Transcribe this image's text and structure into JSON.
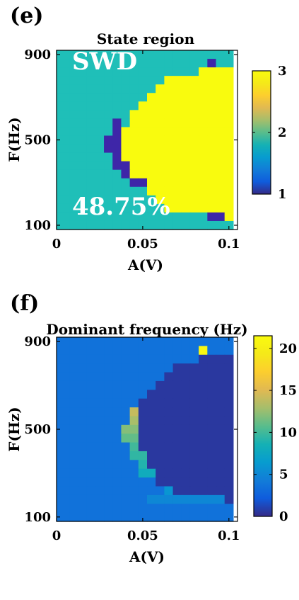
{
  "chart_data": [
    {
      "type": "heatmap",
      "panel": "(e)",
      "title": "State region",
      "xlabel": "A(V)",
      "ylabel": "F(Hz)",
      "xlim": [
        0,
        0.105
      ],
      "ylim": [
        80,
        920
      ],
      "xticks": [
        0,
        0.05,
        0.1
      ],
      "xtick_labels": [
        "0",
        "0.05",
        "0.1"
      ],
      "yticks": [
        100,
        500,
        900
      ],
      "ytick_labels": [
        "100",
        "500",
        "900"
      ],
      "grid": false,
      "colormap": "parula",
      "colorbar": {
        "min": 1,
        "max": 3,
        "ticks": [
          1,
          2,
          3
        ],
        "tick_labels": [
          "1",
          "2",
          "3"
        ]
      },
      "annotations": [
        {
          "text": "SWD",
          "x": 0.009,
          "y": 830
        },
        {
          "text": "48.75%",
          "x": 0.009,
          "y": 150
        }
      ],
      "grid_spec": {
        "cols": 21,
        "rows": 21,
        "x0": 0,
        "dx": 0.005,
        "y0": 100,
        "dy": 40
      },
      "values_rows_top_to_bottom": [
        "222222222222222222222",
        "222222222222222222122",
        "222222222222222223333",
        "222222222222233333333",
        "222222222222333333333",
        "222222222223333333333",
        "222222222233333333333",
        "222222222333333333333",
        "222222212333333333333",
        "222222213333333333333",
        "222222113333333333333",
        "222222113333333333333",
        "222222213333333333333",
        "222222211333333333333",
        "222222221333333333333",
        "222222222113333333333",
        "222222222223333333333",
        "222222222222333333333",
        "222222222222233333333",
        "222222222222222222113",
        "222222222222222222222"
      ]
    },
    {
      "type": "heatmap",
      "panel": "(f)",
      "title": "Dominant frequency (Hz)",
      "xlabel": "A(V)",
      "ylabel": "F(Hz)",
      "xlim": [
        0,
        0.105
      ],
      "ylim": [
        80,
        920
      ],
      "xticks": [
        0,
        0.05,
        0.1
      ],
      "xtick_labels": [
        "0",
        "0.05",
        "0.1"
      ],
      "yticks": [
        100,
        500,
        900
      ],
      "ytick_labels": [
        "100",
        "500",
        "900"
      ],
      "grid": false,
      "colormap": "parula",
      "colorbar": {
        "min": 0,
        "max": 21.5,
        "ticks": [
          0,
          5,
          10,
          15,
          20
        ],
        "tick_labels": [
          "0",
          "5",
          "10",
          "15",
          "20"
        ]
      },
      "grid_spec": {
        "cols": 21,
        "rows": 21,
        "x0": 0,
        "dx": 0.005,
        "y0": 100,
        "dy": 40
      },
      "values_rows_top_to_bottom": [
        [
          3.6,
          3.6,
          3.6,
          3.6,
          3.6,
          3.6,
          3.6,
          3.6,
          3.6,
          3.6,
          3.6,
          3.6,
          3.6,
          3.6,
          3.6,
          3.6,
          3.6,
          3.6,
          3.6,
          3.6,
          3.6
        ],
        [
          3.6,
          3.6,
          3.6,
          3.6,
          3.6,
          3.6,
          3.6,
          3.6,
          3.6,
          3.6,
          3.6,
          3.6,
          3.6,
          3.6,
          3.6,
          3.6,
          3.6,
          21,
          3.6,
          3.6,
          3.6
        ],
        [
          3.6,
          3.6,
          3.6,
          3.6,
          3.6,
          3.6,
          3.6,
          3.6,
          3.6,
          3.6,
          3.6,
          3.6,
          3.6,
          3.6,
          3.6,
          3.6,
          3.6,
          0.6,
          0.6,
          0.6,
          0.6
        ],
        [
          3.6,
          3.6,
          3.6,
          3.6,
          3.6,
          3.6,
          3.6,
          3.6,
          3.6,
          3.6,
          3.6,
          3.6,
          3.6,
          3.6,
          0.6,
          0.6,
          0.6,
          0.6,
          0.6,
          0.6,
          0.6
        ],
        [
          3.6,
          3.6,
          3.6,
          3.6,
          3.6,
          3.6,
          3.6,
          3.6,
          3.6,
          3.6,
          3.6,
          3.6,
          3.6,
          0.6,
          0.6,
          0.6,
          0.6,
          0.6,
          0.6,
          0.6,
          0.6
        ],
        [
          3.6,
          3.6,
          3.6,
          3.6,
          3.6,
          3.6,
          3.6,
          3.6,
          3.6,
          3.6,
          3.6,
          3.6,
          0.6,
          0.6,
          0.6,
          0.6,
          0.6,
          0.6,
          0.6,
          0.6,
          0.6
        ],
        [
          3.6,
          3.6,
          3.6,
          3.6,
          3.6,
          3.6,
          3.6,
          3.6,
          3.6,
          3.6,
          3.6,
          0.6,
          0.6,
          0.6,
          0.6,
          0.6,
          0.6,
          0.6,
          0.6,
          0.6,
          0.6
        ],
        [
          3.6,
          3.6,
          3.6,
          3.6,
          3.6,
          3.6,
          3.6,
          3.6,
          3.6,
          3.6,
          0.6,
          0.6,
          0.6,
          0.6,
          0.6,
          0.6,
          0.6,
          0.6,
          0.6,
          0.6,
          0.6
        ],
        [
          3.6,
          3.6,
          3.6,
          3.6,
          3.6,
          3.6,
          3.6,
          3.6,
          3.6,
          14,
          0.6,
          0.6,
          0.6,
          0.6,
          0.6,
          0.6,
          0.6,
          0.6,
          0.6,
          0.6,
          0.6
        ],
        [
          3.6,
          3.6,
          3.6,
          3.6,
          3.6,
          3.6,
          3.6,
          3.6,
          3.6,
          13,
          0.6,
          0.6,
          0.6,
          0.6,
          0.6,
          0.6,
          0.6,
          0.6,
          0.6,
          0.6,
          0.6
        ],
        [
          3.6,
          3.6,
          3.6,
          3.6,
          3.6,
          3.6,
          3.6,
          3.6,
          12,
          12,
          0.6,
          0.6,
          0.6,
          0.6,
          0.6,
          0.6,
          0.6,
          0.6,
          0.6,
          0.6,
          0.6
        ],
        [
          3.6,
          3.6,
          3.6,
          3.6,
          3.6,
          3.6,
          3.6,
          3.6,
          11,
          11,
          0.6,
          0.6,
          0.6,
          0.6,
          0.6,
          0.6,
          0.6,
          0.6,
          0.6,
          0.6,
          0.6
        ],
        [
          3.6,
          3.6,
          3.6,
          3.6,
          3.6,
          3.6,
          3.6,
          3.6,
          3.6,
          10,
          0.6,
          0.6,
          0.6,
          0.6,
          0.6,
          0.6,
          0.6,
          0.6,
          0.6,
          0.6,
          0.6
        ],
        [
          3.6,
          3.6,
          3.6,
          3.6,
          3.6,
          3.6,
          3.6,
          3.6,
          3.6,
          9.5,
          9.5,
          0.6,
          0.6,
          0.6,
          0.6,
          0.6,
          0.6,
          0.6,
          0.6,
          0.6,
          0.6
        ],
        [
          3.6,
          3.6,
          3.6,
          3.6,
          3.6,
          3.6,
          3.6,
          3.6,
          3.6,
          3.6,
          9,
          0.6,
          0.6,
          0.6,
          0.6,
          0.6,
          0.6,
          0.6,
          0.6,
          0.6,
          0.6
        ],
        [
          3.6,
          3.6,
          3.6,
          3.6,
          3.6,
          3.6,
          3.6,
          3.6,
          3.6,
          3.6,
          8,
          8,
          0.6,
          0.6,
          0.6,
          0.6,
          0.6,
          0.6,
          0.6,
          0.6,
          0.6
        ],
        [
          3.6,
          3.6,
          3.6,
          3.6,
          3.6,
          3.6,
          3.6,
          3.6,
          3.6,
          3.6,
          3.6,
          3.6,
          0.6,
          0.6,
          0.6,
          0.6,
          0.6,
          0.6,
          0.6,
          0.6,
          0.6
        ],
        [
          3.6,
          3.6,
          3.6,
          3.6,
          3.6,
          3.6,
          3.6,
          3.6,
          3.6,
          3.6,
          3.6,
          3.6,
          3.6,
          6,
          0.6,
          0.6,
          0.6,
          0.6,
          0.6,
          0.6,
          0.6
        ],
        [
          3.6,
          3.6,
          3.6,
          3.6,
          3.6,
          3.6,
          3.6,
          3.6,
          3.6,
          3.6,
          3.6,
          5,
          5,
          5,
          5,
          5,
          5,
          5,
          5,
          5,
          0.6
        ],
        [
          3.6,
          3.6,
          3.6,
          3.6,
          3.6,
          3.6,
          3.6,
          3.6,
          3.6,
          3.6,
          3.6,
          3.6,
          3.6,
          3.6,
          3.6,
          3.6,
          3.6,
          3.6,
          3.6,
          3.6,
          3.6
        ],
        [
          3.6,
          3.6,
          3.6,
          3.6,
          3.6,
          3.6,
          3.6,
          3.6,
          3.6,
          3.6,
          3.6,
          3.6,
          3.6,
          3.6,
          3.6,
          3.6,
          3.6,
          3.6,
          3.6,
          3.6,
          3.6
        ]
      ]
    }
  ]
}
